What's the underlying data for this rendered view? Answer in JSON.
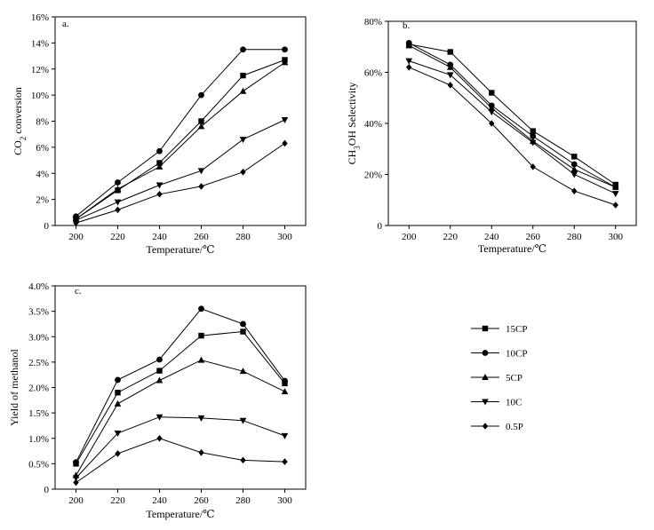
{
  "chart_data": [
    {
      "type": "line",
      "panel": "a.",
      "xlabel": "Temperature/℃",
      "ylabel_parts": [
        "CO",
        "2",
        " conversion"
      ],
      "x": [
        200,
        220,
        240,
        260,
        280,
        300
      ],
      "xlim": [
        190,
        310
      ],
      "ylim": [
        0,
        16
      ],
      "x_ticks": [
        "200",
        "220",
        "240",
        "260",
        "280",
        "300"
      ],
      "y_ticks": [
        "0",
        "2%",
        "4%",
        "6%",
        "8%",
        "10%",
        "12%",
        "14%",
        "16%"
      ],
      "series": [
        {
          "name": "15CP",
          "values": [
            0.5,
            2.7,
            4.8,
            8.0,
            11.5,
            12.7
          ]
        },
        {
          "name": "10CP",
          "values": [
            0.7,
            3.3,
            5.7,
            10.0,
            13.5,
            13.5
          ]
        },
        {
          "name": "5CP",
          "values": [
            0.5,
            2.8,
            4.5,
            7.6,
            10.3,
            12.5
          ]
        },
        {
          "name": "10C",
          "values": [
            0.4,
            1.8,
            3.1,
            4.2,
            6.6,
            8.1
          ]
        },
        {
          "name": "0.5P",
          "values": [
            0.2,
            1.2,
            2.4,
            3.0,
            4.1,
            6.3
          ]
        }
      ]
    },
    {
      "type": "line",
      "panel": "b.",
      "xlabel": "Temperature/℃",
      "ylabel_parts": [
        "CH",
        "3",
        "OH Selectivity"
      ],
      "x": [
        200,
        220,
        240,
        260,
        280,
        300
      ],
      "xlim": [
        190,
        310
      ],
      "ylim": [
        0,
        80
      ],
      "x_ticks": [
        "200",
        "220",
        "240",
        "260",
        "280",
        "300"
      ],
      "y_ticks": [
        "0",
        "20%",
        "40%",
        "60%",
        "80%"
      ],
      "series": [
        {
          "name": "15CP",
          "values": [
            71,
            68,
            52,
            37,
            27,
            16
          ]
        },
        {
          "name": "10CP",
          "values": [
            71.5,
            63,
            47,
            35,
            24,
            15
          ]
        },
        {
          "name": "5CP",
          "values": [
            70.5,
            62,
            46,
            33,
            22,
            15
          ]
        },
        {
          "name": "10C",
          "values": [
            64.5,
            59,
            44.5,
            32.5,
            20,
            12.5
          ]
        },
        {
          "name": "0.5P",
          "values": [
            62,
            55,
            40,
            23,
            13.5,
            8
          ]
        }
      ]
    },
    {
      "type": "line",
      "panel": "c.",
      "xlabel": "Temperature/℃",
      "ylabel_parts": [
        "Yield of methanol"
      ],
      "x": [
        200,
        220,
        240,
        260,
        280,
        300
      ],
      "xlim": [
        190,
        310
      ],
      "ylim": [
        0,
        4.0
      ],
      "x_ticks": [
        "200",
        "220",
        "240",
        "260",
        "280",
        "300"
      ],
      "y_ticks": [
        "0",
        "0.5%",
        "1.0%",
        "1.5%",
        "2.0%",
        "2.5%",
        "3.0%",
        "3.5%",
        "4.0%"
      ],
      "series": [
        {
          "name": "15CP",
          "values": [
            0.5,
            1.9,
            2.33,
            3.02,
            3.1,
            2.08
          ]
        },
        {
          "name": "10CP",
          "values": [
            0.53,
            2.15,
            2.55,
            3.55,
            3.25,
            2.13
          ]
        },
        {
          "name": "5CP",
          "values": [
            0.27,
            1.68,
            2.14,
            2.54,
            2.32,
            1.92
          ]
        },
        {
          "name": "10C",
          "values": [
            0.22,
            1.1,
            1.42,
            1.4,
            1.35,
            1.05
          ]
        },
        {
          "name": "0.5P",
          "values": [
            0.13,
            0.7,
            1.0,
            0.72,
            0.57,
            0.54
          ]
        }
      ]
    }
  ],
  "legend": {
    "placement": "right",
    "entries": [
      {
        "name": "15CP",
        "marker": "square"
      },
      {
        "name": "10CP",
        "marker": "circle"
      },
      {
        "name": "5CP",
        "marker": "triangle-up"
      },
      {
        "name": "10C",
        "marker": "triangle-down"
      },
      {
        "name": "0.5P",
        "marker": "diamond"
      }
    ]
  },
  "style": {
    "line_color": "#000000",
    "background": "#ffffff"
  }
}
